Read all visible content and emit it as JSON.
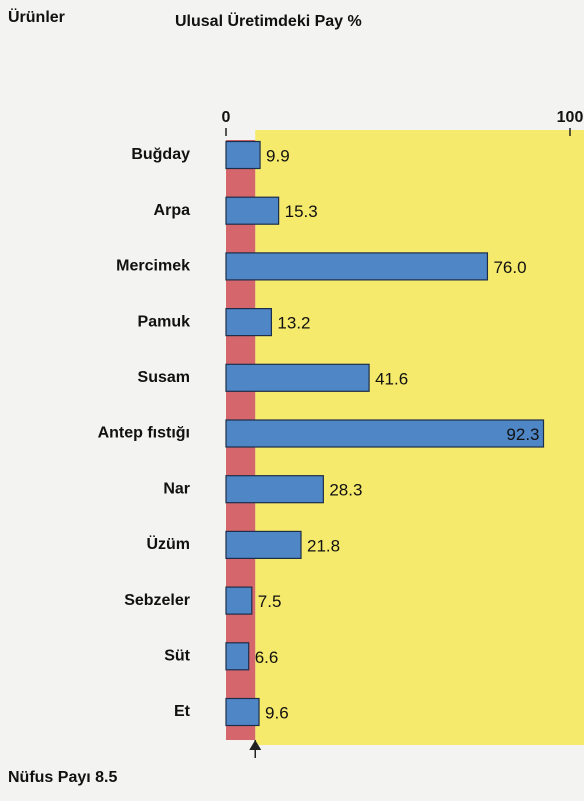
{
  "chart_data": {
    "type": "bar",
    "orientation": "horizontal",
    "header": "Ürünler",
    "title": "Ulusal Üretimdeki Pay %",
    "categories": [
      "Buğday",
      "Arpa",
      "Mercimek",
      "Pamuk",
      "Susam",
      "Antep fıstığı",
      "Nar",
      "Üzüm",
      "Sebzeler",
      "Süt",
      "Et"
    ],
    "values": [
      9.9,
      15.3,
      76.0,
      13.2,
      41.6,
      92.3,
      28.3,
      21.8,
      7.5,
      6.6,
      9.6
    ],
    "value_labels": [
      "9.9",
      "15.3",
      "76.0",
      "13.2",
      "41.6",
      "92.3",
      "28.3",
      "21.8",
      "7.5",
      "6.6",
      "9.6"
    ],
    "color": "#4f86c6",
    "xlim": [
      0,
      100
    ],
    "xticks": [
      0,
      100
    ],
    "reference": {
      "label": "Nüfus Payı",
      "value": 8.5,
      "color": "#d5676c"
    },
    "highlight_color": "#f6ea6c"
  }
}
